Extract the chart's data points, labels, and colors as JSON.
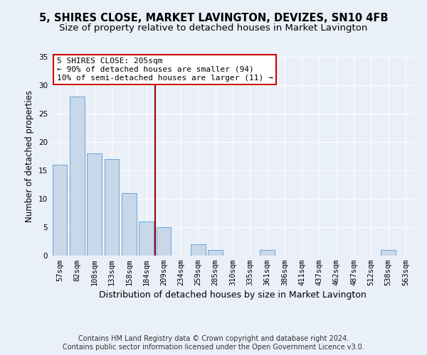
{
  "title": "5, SHIRES CLOSE, MARKET LAVINGTON, DEVIZES, SN10 4FB",
  "subtitle": "Size of property relative to detached houses in Market Lavington",
  "xlabel": "Distribution of detached houses by size in Market Lavington",
  "ylabel": "Number of detached properties",
  "categories": [
    "57sqm",
    "82sqm",
    "108sqm",
    "133sqm",
    "158sqm",
    "184sqm",
    "209sqm",
    "234sqm",
    "259sqm",
    "285sqm",
    "310sqm",
    "335sqm",
    "361sqm",
    "386sqm",
    "411sqm",
    "437sqm",
    "462sqm",
    "487sqm",
    "512sqm",
    "538sqm",
    "563sqm"
  ],
  "values": [
    16,
    28,
    18,
    17,
    11,
    6,
    5,
    0,
    2,
    1,
    0,
    0,
    1,
    0,
    0,
    0,
    0,
    0,
    0,
    1,
    0
  ],
  "bar_color": "#c8d8e8",
  "bar_edge_color": "#5b9bd5",
  "vline_x_index": 6,
  "vline_color": "#990000",
  "annotation_text": "5 SHIRES CLOSE: 205sqm\n← 90% of detached houses are smaller (94)\n10% of semi-detached houses are larger (11) →",
  "annotation_box_color": "#ffffff",
  "annotation_box_edge": "#cc0000",
  "ylim": [
    0,
    35
  ],
  "yticks": [
    0,
    5,
    10,
    15,
    20,
    25,
    30,
    35
  ],
  "footer1": "Contains HM Land Registry data © Crown copyright and database right 2024.",
  "footer2": "Contains public sector information licensed under the Open Government Licence v3.0.",
  "bg_color": "#eaf0f8",
  "plot_bg_color": "#eaf0f8",
  "title_fontsize": 10.5,
  "subtitle_fontsize": 9.5,
  "xlabel_fontsize": 9,
  "ylabel_fontsize": 8.5,
  "tick_fontsize": 7.5,
  "annotation_fontsize": 8,
  "footer_fontsize": 7
}
